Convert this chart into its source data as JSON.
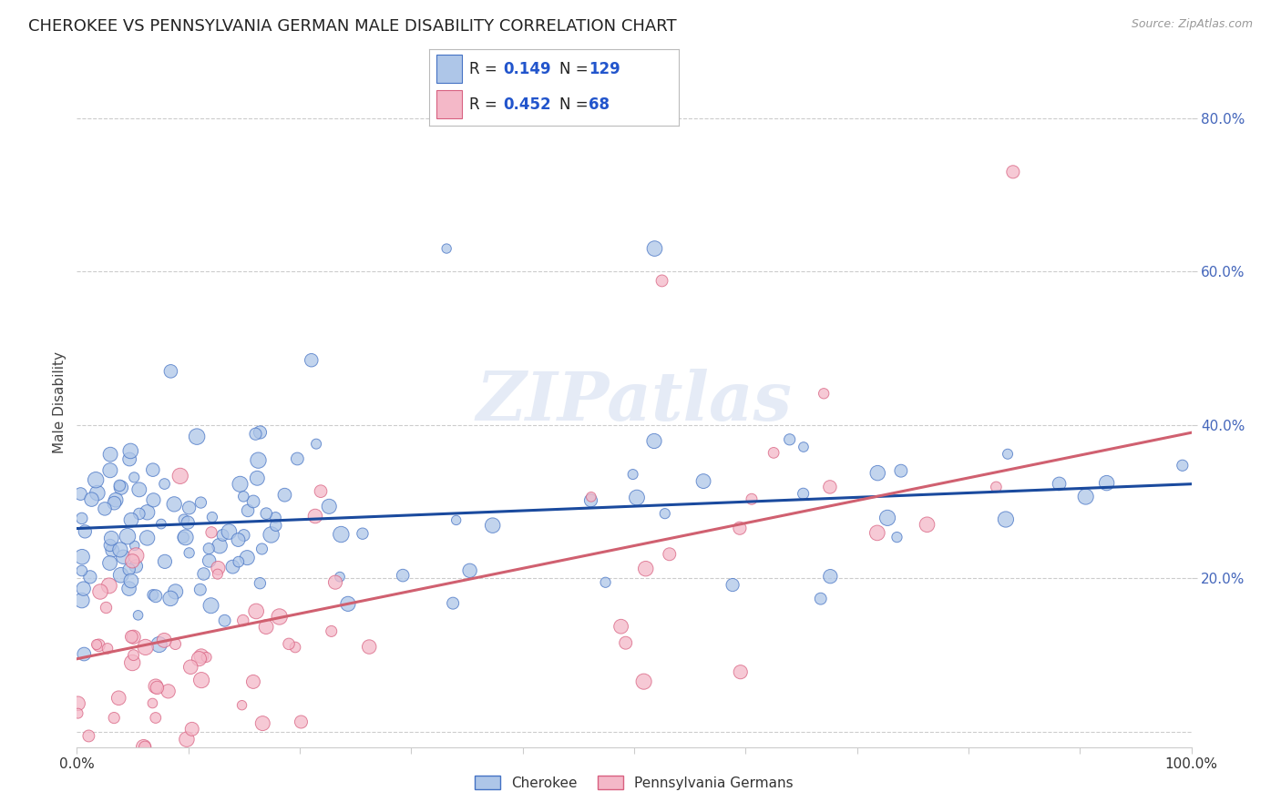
{
  "title": "CHEROKEE VS PENNSYLVANIA GERMAN MALE DISABILITY CORRELATION CHART",
  "source": "Source: ZipAtlas.com",
  "ylabel": "Male Disability",
  "xlim": [
    0.0,
    1.0
  ],
  "ylim": [
    -0.02,
    0.88
  ],
  "cherokee_color": "#aec6e8",
  "cherokee_edge_color": "#4472c4",
  "pg_color": "#f4b8c8",
  "pg_edge_color": "#d86080",
  "cherokee_line_color": "#1a4a9e",
  "pg_line_color": "#d06070",
  "R_cherokee": 0.149,
  "N_cherokee": 129,
  "R_pg": 0.452,
  "N_pg": 68,
  "legend_label_cherokee": "Cherokee",
  "legend_label_pg": "Pennsylvania Germans",
  "watermark": "ZIPatlas",
  "background_color": "#ffffff",
  "grid_color": "#cccccc",
  "title_fontsize": 13,
  "axis_label_fontsize": 11,
  "tick_fontsize": 11,
  "cherokee_line_intercept": 0.265,
  "cherokee_line_slope": 0.058,
  "pg_line_intercept": 0.095,
  "pg_line_slope": 0.295
}
